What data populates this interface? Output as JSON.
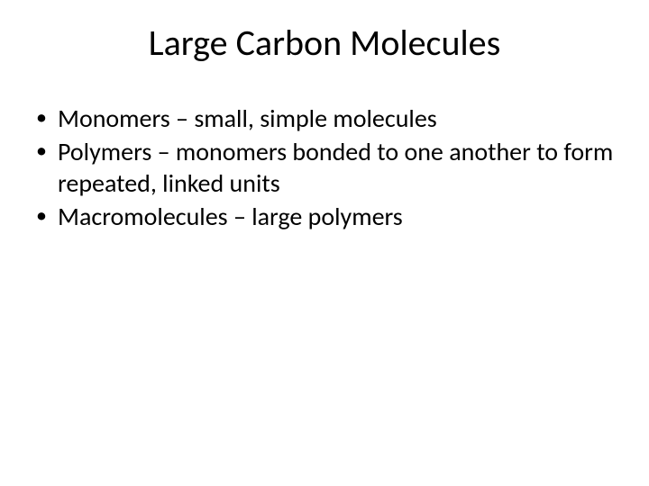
{
  "slide": {
    "title": "Large Carbon Molecules",
    "bullets": [
      "Monomers – small, simple molecules",
      "Polymers – monomers bonded to one another to form repeated, linked units",
      "Macromolecules – large polymers"
    ],
    "title_fontsize": 40,
    "body_fontsize": 28,
    "text_color": "#000000",
    "background_color": "#ffffff"
  }
}
